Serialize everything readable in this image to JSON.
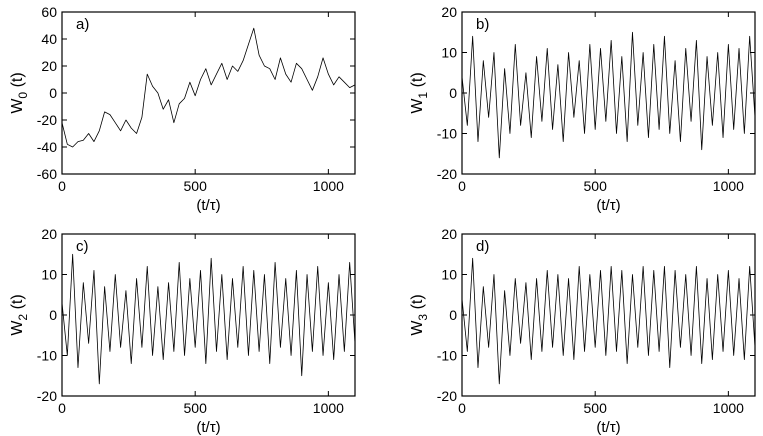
{
  "figure": {
    "line_color": "#000000",
    "background": "#ffffff"
  },
  "chart_data": [
    {
      "type": "line",
      "panel_label": "a)",
      "xlabel": "(t/τ)",
      "ylabel_main": "W",
      "ylabel_sub": "0",
      "ylabel_suffix": "(t)",
      "xlim": [
        0,
        1100
      ],
      "ylim": [
        -60,
        60
      ],
      "xticks": [
        0,
        500,
        1000
      ],
      "yticks": [
        -60,
        -40,
        -20,
        0,
        20,
        40,
        60
      ],
      "series": [
        {
          "x": [
            0,
            20,
            40,
            60,
            80,
            100,
            120,
            140,
            160,
            180,
            200,
            220,
            240,
            260,
            280,
            300,
            320,
            340,
            360,
            380,
            400,
            420,
            440,
            460,
            480,
            500,
            520,
            540,
            560,
            580,
            600,
            620,
            640,
            660,
            680,
            700,
            720,
            740,
            760,
            780,
            800,
            820,
            840,
            860,
            880,
            900,
            920,
            940,
            960,
            980,
            1000,
            1020,
            1040,
            1060,
            1080,
            1100
          ],
          "y": [
            -22,
            -38,
            -40,
            -36,
            -35,
            -30,
            -36,
            -28,
            -14,
            -16,
            -22,
            -28,
            -20,
            -26,
            -30,
            -18,
            14,
            5,
            0,
            -12,
            -5,
            -22,
            -8,
            -4,
            8,
            -2,
            10,
            18,
            6,
            14,
            22,
            10,
            20,
            16,
            24,
            36,
            48,
            28,
            20,
            18,
            10,
            26,
            14,
            8,
            22,
            18,
            10,
            2,
            12,
            26,
            14,
            6,
            12,
            8,
            4,
            6
          ]
        }
      ]
    },
    {
      "type": "line",
      "panel_label": "b)",
      "xlabel": "(t/τ)",
      "ylabel_main": "W",
      "ylabel_sub": "1",
      "ylabel_suffix": "(t)",
      "xlim": [
        0,
        1100
      ],
      "ylim": [
        -20,
        20
      ],
      "xticks": [
        0,
        500,
        1000
      ],
      "yticks": [
        -20,
        -10,
        0,
        10,
        20
      ],
      "series": [
        {
          "x": [
            0,
            20,
            40,
            60,
            80,
            100,
            120,
            140,
            160,
            180,
            200,
            220,
            240,
            260,
            280,
            300,
            320,
            340,
            360,
            380,
            400,
            420,
            440,
            460,
            480,
            500,
            520,
            540,
            560,
            580,
            600,
            620,
            640,
            660,
            680,
            700,
            720,
            740,
            760,
            780,
            800,
            820,
            840,
            860,
            880,
            900,
            920,
            940,
            960,
            980,
            1000,
            1020,
            1040,
            1060,
            1080,
            1100
          ],
          "y": [
            4,
            -8,
            14,
            -12,
            8,
            -6,
            10,
            -16,
            6,
            -10,
            12,
            -8,
            5,
            -11,
            9,
            -7,
            11,
            -9,
            7,
            -12,
            10,
            -6,
            8,
            -10,
            12,
            -9,
            11,
            -7,
            13,
            -10,
            9,
            -12,
            15,
            -8,
            10,
            -11,
            12,
            -9,
            14,
            -10,
            8,
            -12,
            11,
            -7,
            13,
            -14,
            9,
            -8,
            10,
            -11,
            12,
            -9,
            11,
            -10,
            14,
            -6
          ]
        }
      ]
    },
    {
      "type": "line",
      "panel_label": "c)",
      "xlabel": "(t/τ)",
      "ylabel_main": "W",
      "ylabel_sub": "2",
      "ylabel_suffix": "(t)",
      "xlim": [
        0,
        1100
      ],
      "ylim": [
        -20,
        20
      ],
      "xticks": [
        0,
        500,
        1000
      ],
      "yticks": [
        -20,
        -10,
        0,
        10,
        20
      ],
      "series": [
        {
          "x": [
            0,
            20,
            40,
            60,
            80,
            100,
            120,
            140,
            160,
            180,
            200,
            220,
            240,
            260,
            280,
            300,
            320,
            340,
            360,
            380,
            400,
            420,
            440,
            460,
            480,
            500,
            520,
            540,
            560,
            580,
            600,
            620,
            640,
            660,
            680,
            700,
            720,
            740,
            760,
            780,
            800,
            820,
            840,
            860,
            880,
            900,
            920,
            940,
            960,
            980,
            1000,
            1020,
            1040,
            1060,
            1080,
            1100
          ],
          "y": [
            3,
            -10,
            15,
            -13,
            8,
            -7,
            11,
            -17,
            7,
            -9,
            10,
            -8,
            6,
            -12,
            9,
            -8,
            12,
            -10,
            7,
            -11,
            8,
            -9,
            13,
            -10,
            9,
            -8,
            11,
            -12,
            14,
            -9,
            10,
            -11,
            9,
            -8,
            12,
            -10,
            11,
            -9,
            10,
            -12,
            13,
            -8,
            9,
            -10,
            11,
            -15,
            10,
            -9,
            12,
            -10,
            8,
            -11,
            10,
            -9,
            13,
            -7
          ]
        }
      ]
    },
    {
      "type": "line",
      "panel_label": "d)",
      "xlabel": "(t/τ)",
      "ylabel_main": "W",
      "ylabel_sub": "3",
      "ylabel_suffix": "(t)",
      "xlim": [
        0,
        1100
      ],
      "ylim": [
        -20,
        20
      ],
      "xticks": [
        0,
        500,
        1000
      ],
      "yticks": [
        -20,
        -10,
        0,
        10,
        20
      ],
      "series": [
        {
          "x": [
            0,
            20,
            40,
            60,
            80,
            100,
            120,
            140,
            160,
            180,
            200,
            220,
            240,
            260,
            280,
            300,
            320,
            340,
            360,
            380,
            400,
            420,
            440,
            460,
            480,
            500,
            520,
            540,
            560,
            580,
            600,
            620,
            640,
            660,
            680,
            700,
            720,
            740,
            760,
            780,
            800,
            820,
            840,
            860,
            880,
            900,
            920,
            940,
            960,
            980,
            1000,
            1020,
            1040,
            1060,
            1080,
            1100
          ],
          "y": [
            4,
            -9,
            14,
            -13,
            7,
            -8,
            10,
            -17,
            6,
            -10,
            9,
            -7,
            8,
            -11,
            9,
            -9,
            11,
            -8,
            10,
            -10,
            9,
            -11,
            12,
            -9,
            10,
            -8,
            11,
            -10,
            12,
            -9,
            11,
            -12,
            10,
            -8,
            12,
            -10,
            11,
            -9,
            12,
            -13,
            11,
            -8,
            10,
            -10,
            12,
            -12,
            9,
            -11,
            10,
            -9,
            11,
            -10,
            9,
            -11,
            12,
            -8
          ]
        }
      ]
    }
  ]
}
